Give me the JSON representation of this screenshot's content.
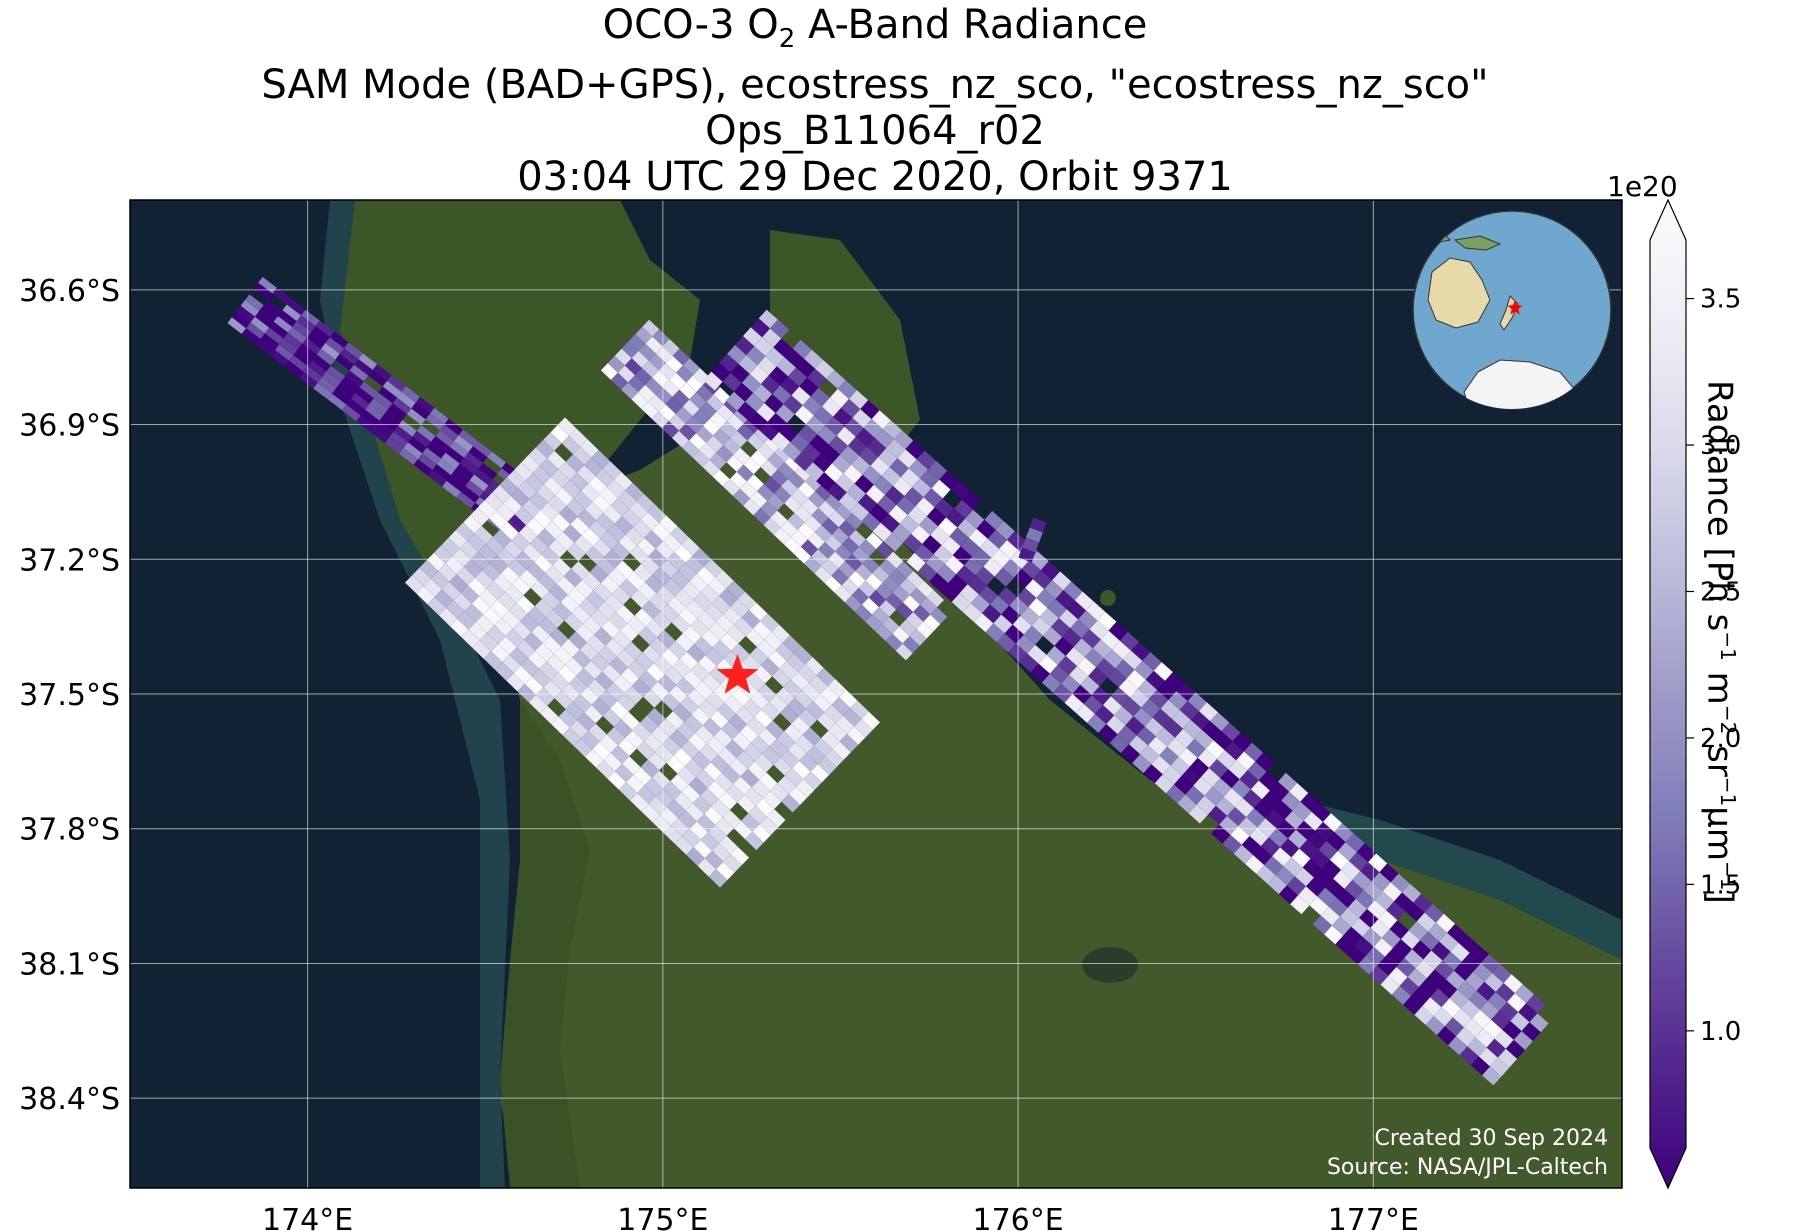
{
  "title": {
    "line1_pre": "OCO-3 O",
    "line1_sub": "2",
    "line1_post": " A-Band Radiance",
    "line2": "SAM Mode (BAD+GPS), ecostress_nz_sco, \"ecostress_nz_sco\"",
    "line3": "Ops_B11064_r02",
    "line4": "03:04 UTC 29 Dec 2020, Orbit 9371"
  },
  "map": {
    "lat_ticks": [
      "36.6°S",
      "36.9°S",
      "37.2°S",
      "37.5°S",
      "37.8°S",
      "38.1°S",
      "38.4°S"
    ],
    "lon_ticks": [
      "174°E",
      "175°E",
      "176°E",
      "177°E"
    ],
    "lat_values": [
      -36.6,
      -36.9,
      -37.2,
      -37.5,
      -37.8,
      -38.1,
      -38.4
    ],
    "lon_values": [
      174,
      175,
      176,
      177
    ],
    "lat_range": [
      -36.4,
      -38.6
    ],
    "lon_range": [
      173.5,
      177.7
    ],
    "target_location": {
      "lat": -37.46,
      "lon": 175.21
    },
    "colors": {
      "ocean": "#102233",
      "land": "#3f5a2a",
      "target_star": "#ff1f1f"
    }
  },
  "inset_globe": {
    "description_icon": "globe-icon",
    "colors": {
      "ocean": "#6fa7cf",
      "land": "#e8d9a8",
      "antarctica": "#f4f4f4",
      "marker": "#ff0000"
    }
  },
  "colorbar": {
    "exponent_label": "1e20",
    "ticks": [
      "1.0",
      "1.5",
      "2.0",
      "2.5",
      "3.0",
      "3.5"
    ],
    "tick_values": [
      1.0,
      1.5,
      2.0,
      2.5,
      3.0,
      3.5
    ],
    "range": [
      0.6,
      3.7
    ],
    "label_pre": "Radiance [Ph s",
    "label_parts": [
      {
        "text": "Radiance [Ph s",
        "sup": "−1"
      },
      {
        "text": " m",
        "sup": "−2"
      },
      {
        "text": " sr",
        "sup": "−1"
      },
      {
        "text": "μm",
        "sup": "−1"
      },
      {
        "text": "]",
        "sup": ""
      }
    ],
    "colormap": [
      "#3f007d",
      "#54278f",
      "#6a51a3",
      "#807dba",
      "#9e9ac8",
      "#bcbddc",
      "#dadaeb",
      "#efedf5",
      "#fcfbfd"
    ]
  },
  "credits": {
    "line1": "Created 30 Sep 2024",
    "line2": "Source: NASA/JPL-Caltech"
  }
}
